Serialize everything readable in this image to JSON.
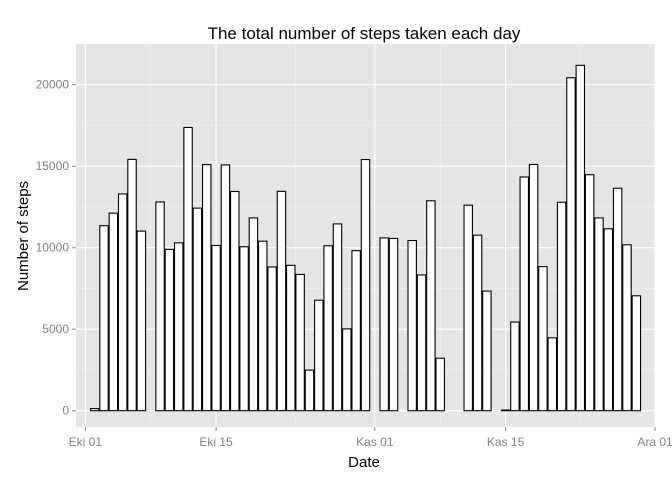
{
  "chart_data": {
    "type": "bar",
    "title": "The total number of steps taken each day",
    "xlabel": "Date",
    "ylabel": "Number of steps",
    "x_axis": "date",
    "xlim": [
      "2012-09-30",
      "2012-12-01"
    ],
    "ylim": [
      -1000,
      22500
    ],
    "grid": true,
    "panel_background": "#e5e5e5",
    "bar_fill": "#ffffff",
    "bar_outline": "#000000",
    "x_ticks": [
      {
        "date": "2012-10-01",
        "label": "Eki 01"
      },
      {
        "date": "2012-10-15",
        "label": "Eki 15"
      },
      {
        "date": "2012-11-01",
        "label": "Kas 01"
      },
      {
        "date": "2012-11-15",
        "label": "Kas 15"
      },
      {
        "date": "2012-12-01",
        "label": "Ara 01"
      }
    ],
    "y_ticks": [
      {
        "value": 0,
        "label": "0"
      },
      {
        "value": 5000,
        "label": "5000"
      },
      {
        "value": 10000,
        "label": "10000"
      },
      {
        "value": 15000,
        "label": "15000"
      },
      {
        "value": 20000,
        "label": "20000"
      }
    ],
    "x": [
      "2012-10-01",
      "2012-10-02",
      "2012-10-03",
      "2012-10-04",
      "2012-10-05",
      "2012-10-06",
      "2012-10-07",
      "2012-10-08",
      "2012-10-09",
      "2012-10-10",
      "2012-10-11",
      "2012-10-12",
      "2012-10-13",
      "2012-10-14",
      "2012-10-15",
      "2012-10-16",
      "2012-10-17",
      "2012-10-18",
      "2012-10-19",
      "2012-10-20",
      "2012-10-21",
      "2012-10-22",
      "2012-10-23",
      "2012-10-24",
      "2012-10-25",
      "2012-10-26",
      "2012-10-27",
      "2012-10-28",
      "2012-10-29",
      "2012-10-30",
      "2012-10-31",
      "2012-11-01",
      "2012-11-02",
      "2012-11-03",
      "2012-11-04",
      "2012-11-05",
      "2012-11-06",
      "2012-11-07",
      "2012-11-08",
      "2012-11-09",
      "2012-11-10",
      "2012-11-11",
      "2012-11-12",
      "2012-11-13",
      "2012-11-14",
      "2012-11-15",
      "2012-11-16",
      "2012-11-17",
      "2012-11-18",
      "2012-11-19",
      "2012-11-20",
      "2012-11-21",
      "2012-11-22",
      "2012-11-23",
      "2012-11-24",
      "2012-11-25",
      "2012-11-26",
      "2012-11-27",
      "2012-11-28",
      "2012-11-29",
      "2012-11-30"
    ],
    "values": [
      0,
      130,
      11350,
      12120,
      13300,
      15420,
      11020,
      0,
      12810,
      9900,
      10300,
      17380,
      12430,
      15100,
      10140,
      15080,
      13450,
      10060,
      11830,
      10400,
      8820,
      13460,
      8920,
      8360,
      2490,
      6780,
      10120,
      11460,
      5020,
      9820,
      15410,
      0,
      10600,
      10570,
      0,
      10440,
      8330,
      12880,
      3220,
      0,
      0,
      12610,
      10770,
      7340,
      0,
      40,
      5440,
      14340,
      15110,
      8840,
      4470,
      12790,
      20430,
      21190,
      14480,
      11830,
      11160,
      13650,
      10180,
      7050,
      0
    ]
  }
}
